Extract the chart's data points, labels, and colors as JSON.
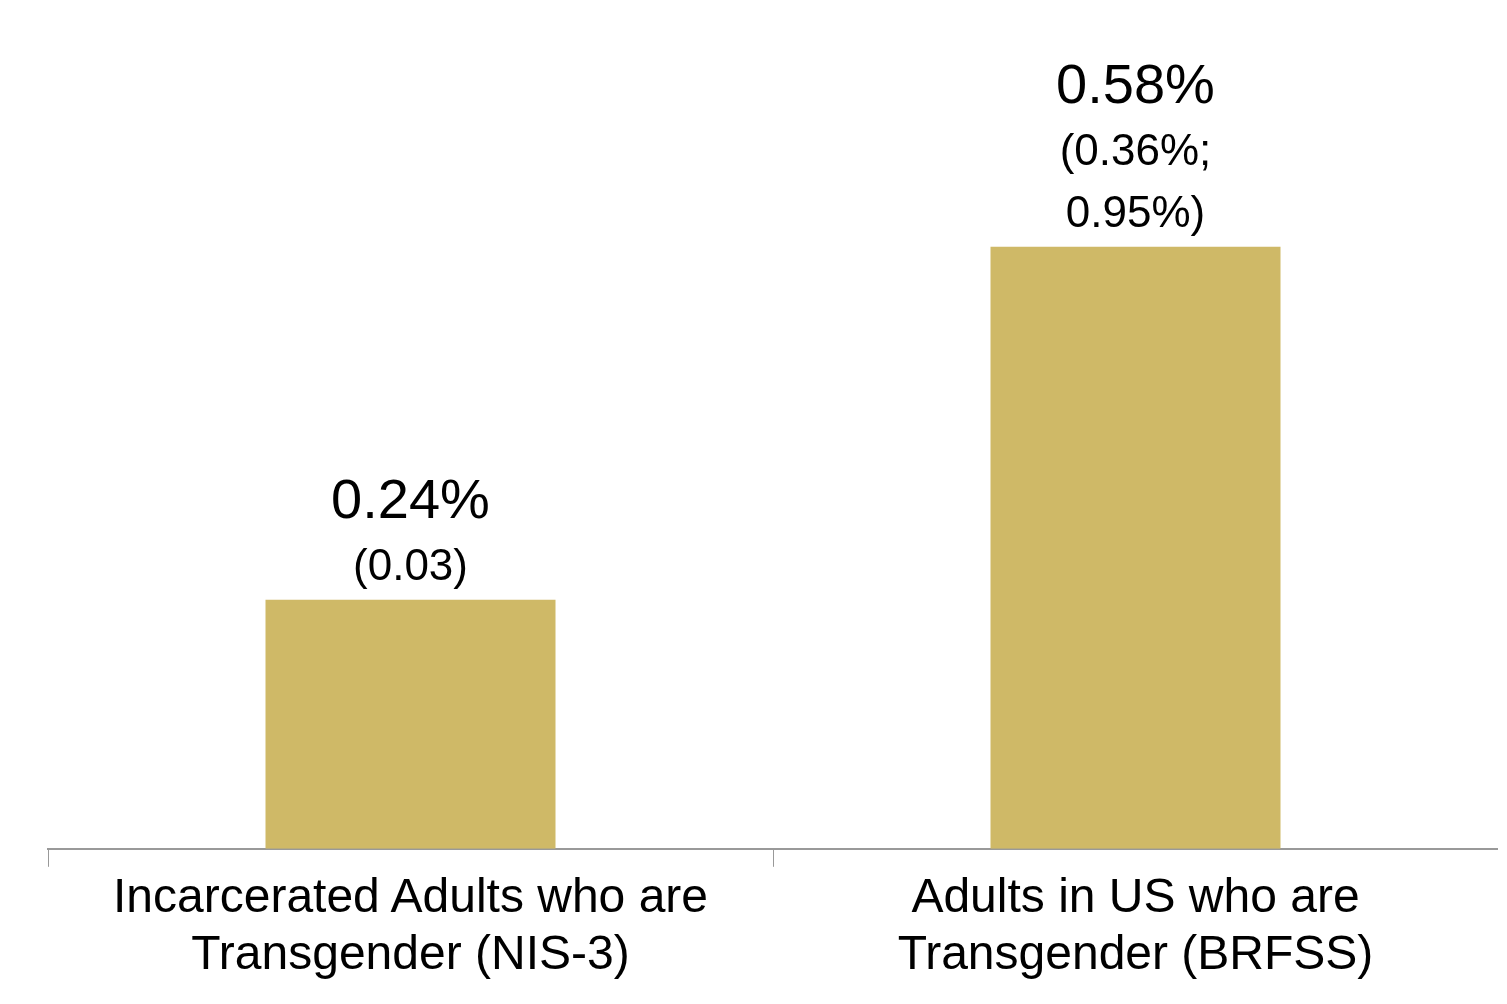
{
  "chart_data": {
    "type": "bar",
    "categories": [
      "Incarcerated Adults who are Transgender (NIS-3)",
      "Adults in US who are Transgender (BRFSS)"
    ],
    "values": [
      0.24,
      0.58
    ],
    "color": "#cfb967",
    "value_labels": [
      "0.24% (0.03)",
      "0.58% (0.36%; 0.95%)"
    ]
  }
}
